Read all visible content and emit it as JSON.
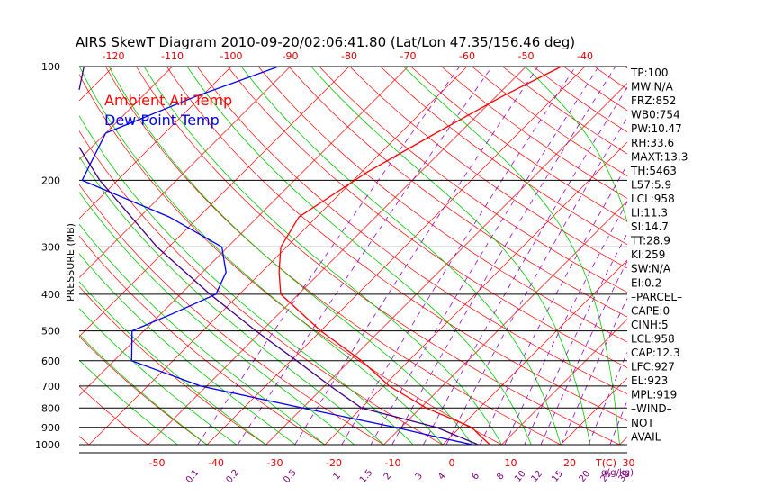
{
  "title": "AIRS SkewT Diagram 2010-09-20/02:06:41.80 (Lat/Lon 47.35/156.46 deg)",
  "colors": {
    "ambient": "#ff0000",
    "dewpoint": "#0000ff",
    "dry_adiabat": "#ff0000",
    "moist_adiabat": "#00c800",
    "mixing_ratio": "#9900cc",
    "isotherm_labels": "#dd0000",
    "mixing_labels": "#800080",
    "isobar": "#000000",
    "parcel": "#400080"
  },
  "chart_data": {
    "type": "line",
    "title": "AIRS SkewT Diagram 2010-09-20/02:06:41.80 (Lat/Lon 47.35/156.46 deg)",
    "ylabel": "PRESSURE (MB)",
    "y_scale": "log",
    "ylim": [
      1000,
      100
    ],
    "pressure_ticks": [
      100,
      200,
      300,
      400,
      500,
      600,
      700,
      800,
      900,
      1000
    ],
    "top_temperature_ticks": [
      "-120",
      "-110",
      "-100",
      "-90",
      "-80",
      "-70",
      "-60",
      "-50",
      "-40"
    ],
    "bottom_temperature_ticks": [
      "-50",
      "-40",
      "-30",
      "-20",
      "-10",
      "0",
      "10",
      "20",
      "30"
    ],
    "bottom_unit_label": "T(C)",
    "mixing_ratio_labels": [
      "0.1",
      "0.2",
      "0.5",
      "1",
      "1.5",
      "2",
      "3",
      "4",
      "6",
      "8",
      "10",
      "12",
      "15",
      "20",
      "25",
      "30",
      "40"
    ],
    "mixing_ratio_unit": "q(g/kg)",
    "series": [
      {
        "name": "Ambient Air Temp",
        "pressure": [
          100,
          120,
          150,
          190,
          250,
          300,
          350,
          400,
          500,
          600,
          700,
          800,
          900,
          950,
          1000
        ],
        "temperature": [
          -44,
          -49,
          -54,
          -59,
          -63,
          -61,
          -57,
          -53,
          -40,
          -28,
          -19,
          -9,
          2,
          5,
          8
        ]
      },
      {
        "name": "Dew Point Temp",
        "pressure": [
          100,
          120,
          150,
          200,
          250,
          300,
          350,
          400,
          450,
          500,
          600,
          700,
          800,
          900,
          950,
          1000
        ],
        "temperature": [
          -92,
          -101,
          -110,
          -106,
          -85,
          -71,
          -66,
          -64,
          -68,
          -72,
          -67,
          -51,
          -30,
          -11,
          -3,
          5
        ]
      },
      {
        "name": "Parcel",
        "pressure": [
          100,
          150,
          200,
          300,
          400,
          500,
          600,
          700,
          800,
          900,
          1000
        ],
        "temperature": [
          -125,
          -116,
          -103,
          -82,
          -65,
          -51,
          -39,
          -29,
          -20,
          -4,
          6
        ]
      }
    ],
    "legend": [
      "Ambient Air Temp",
      "Dew Point Temp"
    ]
  },
  "indices": [
    "TP:100",
    "MW:N/A",
    "FRZ:852",
    "WB0:754",
    "PW:10.47",
    "RH:33.6",
    "MAXT:13.3",
    "TH:5463",
    "L57:5.9",
    "LCL:958",
    "LI:11.3",
    "SI:14.7",
    "TT:28.9",
    "KI:259",
    "SW:N/A",
    "EI:0.2",
    "–PARCEL–",
    "CAPE:0",
    "CINH:5",
    "LCL:958",
    "CAP:12.3",
    "LFC:927",
    "EL:923",
    "MPL:919",
    "–WIND–",
    "NOT",
    "AVAIL"
  ]
}
